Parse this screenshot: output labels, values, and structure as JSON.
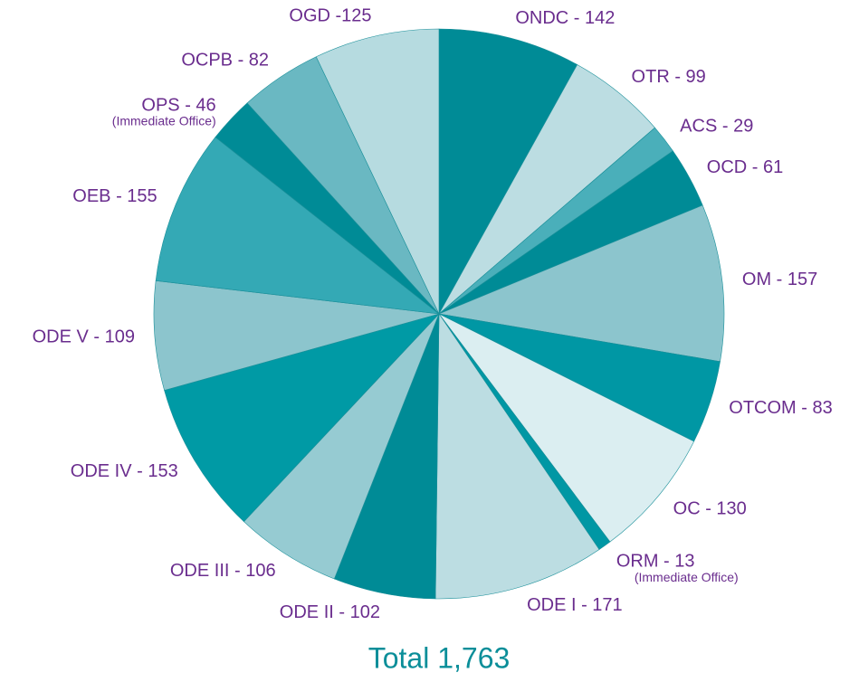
{
  "chart_data": {
    "type": "pie",
    "values": [
      142,
      99,
      29,
      61,
      157,
      83,
      130,
      13,
      171,
      102,
      106,
      153,
      109,
      155,
      46,
      82,
      125
    ],
    "value_labels": [
      "ONDC - 142",
      "OTR - 99",
      "ACS - 29",
      "OCD - 61",
      "OM - 157",
      "OTCOM - 83",
      "OC - 130",
      "ORM - 13",
      "ODE I - 171",
      "ODE II - 102",
      "ODE III - 106",
      "ODE IV - 153",
      "ODE V - 109",
      "OEB - 155",
      "OPS - 46",
      "OCPB - 82",
      "OGD -125"
    ],
    "value_notes": [
      null,
      null,
      null,
      null,
      null,
      null,
      null,
      "(Immediate Office)",
      null,
      null,
      null,
      null,
      null,
      null,
      "(Immediate Office)",
      null,
      null
    ],
    "colors": [
      "#008b96",
      "#bcdde2",
      "#4aafba",
      "#008b96",
      "#8cc5cd",
      "#0097a4",
      "#dbeef1",
      "#0097a4",
      "#bcdde2",
      "#008b96",
      "#96cbd2",
      "#009aa5",
      "#8cc5cd",
      "#34a9b5",
      "#008b96",
      "#6ab8c2",
      "#b6dbe0"
    ],
    "total": "Total 1,763"
  }
}
